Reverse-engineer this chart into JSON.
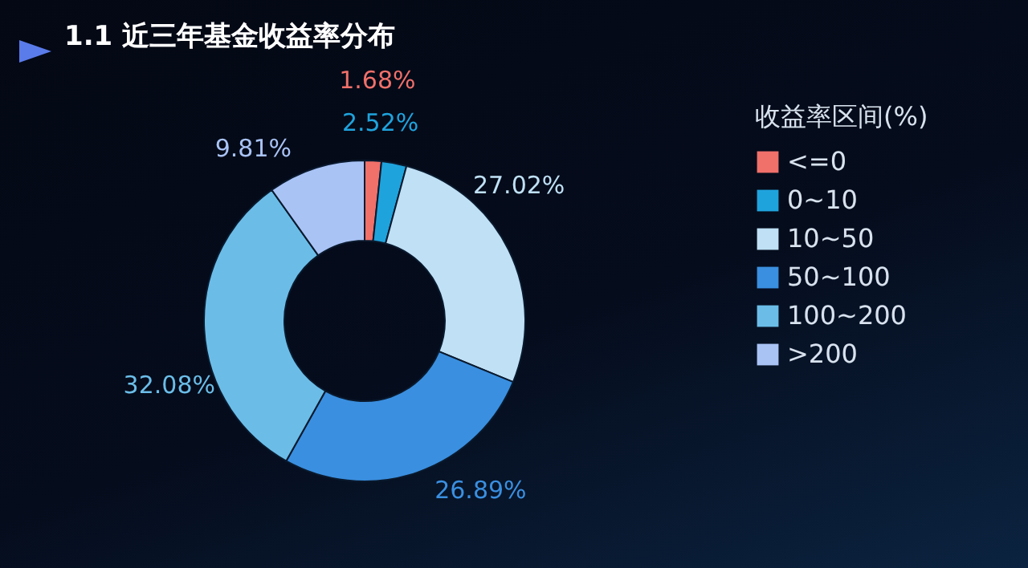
{
  "chart_data": {
    "type": "donut",
    "title": "1.1 近三年基金收益率分布",
    "legend_title": "收益率区间(%)",
    "legend": "right",
    "categories": [
      "<=0",
      "0~10",
      "10~50",
      "50~100",
      "100~200",
      ">200"
    ],
    "values": [
      1.68,
      2.52,
      27.02,
      26.89,
      32.08,
      9.81
    ],
    "value_labels": [
      "1.68%",
      "2.52%",
      "27.02%",
      "26.89%",
      "32.08%",
      "9.81%"
    ],
    "colors": [
      "#f0706a",
      "#1fa3dd",
      "#bfe0f5",
      "#3a8fe0",
      "#6bbde8",
      "#a9c3f5"
    ]
  }
}
